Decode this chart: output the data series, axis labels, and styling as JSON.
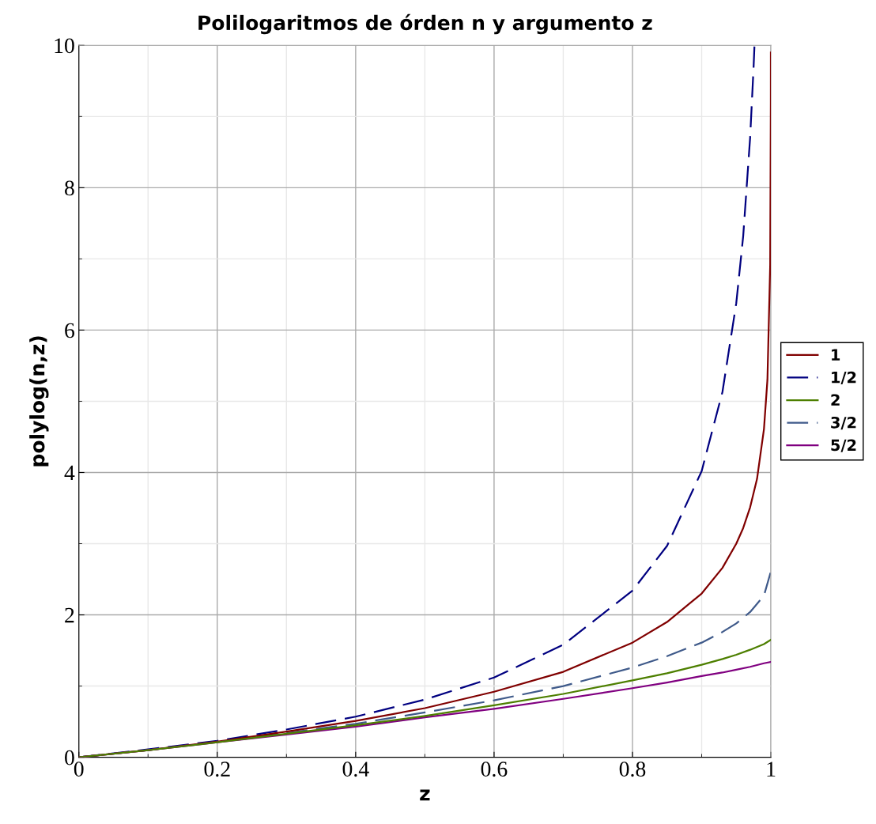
{
  "chart_data": {
    "type": "line",
    "title": "Polilogaritmos de órden n y argumento z",
    "xlabel": "z",
    "ylabel": "polylog(n,z)",
    "x": [
      0,
      0.1,
      0.2,
      0.3,
      0.4,
      0.5,
      0.6,
      0.7,
      0.8,
      0.85,
      0.9,
      0.93,
      0.95,
      0.97,
      0.99,
      1.0
    ],
    "series": [
      {
        "name": "1",
        "color": "#800000",
        "line_style": "solid",
        "x": [
          0,
          0.1,
          0.2,
          0.3,
          0.4,
          0.5,
          0.6,
          0.7,
          0.8,
          0.85,
          0.9,
          0.93,
          0.95,
          0.96,
          0.97,
          0.98,
          0.99,
          0.995,
          0.999,
          0.9999,
          0.99995
        ],
        "values": [
          0,
          0.1,
          0.22,
          0.36,
          0.51,
          0.69,
          0.92,
          1.2,
          1.61,
          1.9,
          2.3,
          2.66,
          3.0,
          3.22,
          3.51,
          3.91,
          4.61,
          5.3,
          6.91,
          9.21,
          9.9
        ]
      },
      {
        "name": "1/2",
        "color": "#000080",
        "line_style": "dashed",
        "x": [
          0,
          0.1,
          0.2,
          0.3,
          0.4,
          0.5,
          0.6,
          0.7,
          0.8,
          0.85,
          0.9,
          0.93,
          0.95,
          0.96,
          0.97,
          0.975,
          0.9763
        ],
        "values": [
          0,
          0.11,
          0.23,
          0.39,
          0.57,
          0.81,
          1.12,
          1.58,
          2.34,
          2.97,
          4.02,
          5.13,
          6.38,
          7.32,
          8.7,
          9.69,
          10
        ]
      },
      {
        "name": "2",
        "color": "#4d7f00",
        "line_style": "solid",
        "values": [
          0,
          0.1,
          0.21,
          0.33,
          0.45,
          0.58,
          0.73,
          0.89,
          1.08,
          1.18,
          1.3,
          1.38,
          1.44,
          1.51,
          1.59,
          1.65
        ]
      },
      {
        "name": "3/2",
        "color": "#3f5a8a",
        "line_style": "dashed",
        "values": [
          0,
          0.1,
          0.22,
          0.34,
          0.47,
          0.63,
          0.8,
          1.0,
          1.26,
          1.42,
          1.61,
          1.76,
          1.88,
          2.04,
          2.27,
          2.61
        ]
      },
      {
        "name": "5/2",
        "color": "#800080",
        "line_style": "solid",
        "values": [
          0,
          0.1,
          0.21,
          0.32,
          0.43,
          0.56,
          0.68,
          0.82,
          0.97,
          1.05,
          1.14,
          1.19,
          1.23,
          1.27,
          1.32,
          1.34
        ]
      }
    ],
    "xlim": [
      0,
      1
    ],
    "ylim": [
      0,
      10
    ],
    "xticks": [
      0,
      {
        "value": 0.2,
        "label": "0.2"
      },
      {
        "value": 0.4,
        "label": "0.4"
      },
      {
        "value": 0.6,
        "label": "0.6"
      },
      {
        "value": 0.8,
        "label": "0.8"
      },
      1
    ],
    "yticks": [
      0,
      2,
      4,
      6,
      8,
      10
    ],
    "grid": true,
    "legend": "right"
  }
}
